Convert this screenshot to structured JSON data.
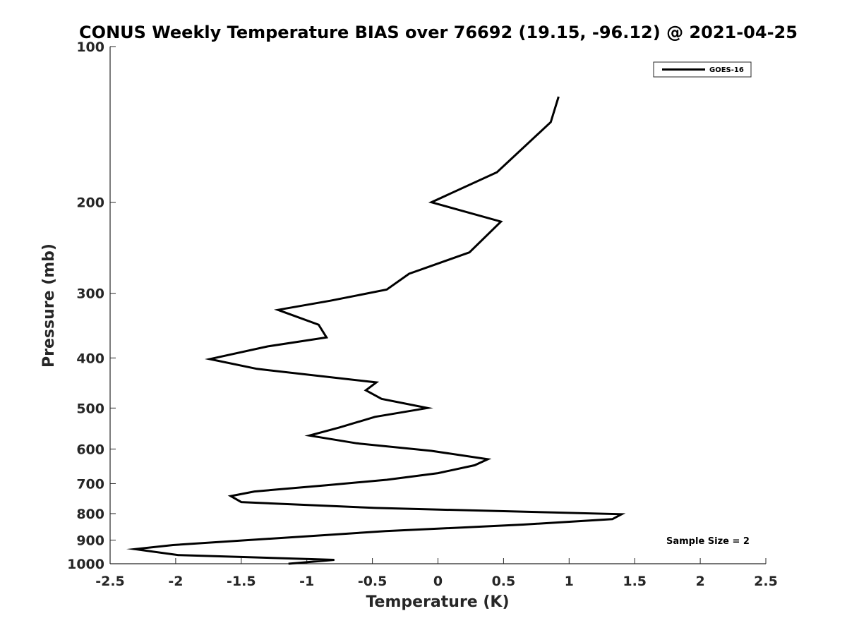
{
  "chart_data": {
    "type": "line",
    "title": "CONUS Weekly Temperature BIAS over 76692 (19.15, -96.12) @ 2021-04-25",
    "xlabel": "Temperature (K)",
    "ylabel": "Pressure (mb)",
    "xlim": [
      -2.5,
      2.5
    ],
    "ylim": [
      1000,
      100
    ],
    "y_scale": "log",
    "y_reversed": true,
    "x_ticks": [
      -2.5,
      -2,
      -1.5,
      -1,
      -0.5,
      0,
      0.5,
      1,
      1.5,
      2,
      2.5
    ],
    "x_tick_labels": [
      "-2.5",
      "-2",
      "-1.5",
      "-1",
      "-0.5",
      "0",
      "0.5",
      "1",
      "1.5",
      "2",
      "2.5"
    ],
    "y_ticks": [
      100,
      200,
      300,
      400,
      500,
      600,
      700,
      800,
      900,
      1000
    ],
    "y_tick_labels": [
      "100",
      "200",
      "300",
      "400",
      "500",
      "600",
      "700",
      "800",
      "900",
      "1000"
    ],
    "grid": false,
    "legend_position": "top-right",
    "series": [
      {
        "name": "GOES-16",
        "color": "#000000",
        "points": [
          {
            "x": 0.92,
            "y": 125
          },
          {
            "x": 0.86,
            "y": 140
          },
          {
            "x": 0.45,
            "y": 175
          },
          {
            "x": -0.05,
            "y": 200
          },
          {
            "x": 0.48,
            "y": 218
          },
          {
            "x": 0.24,
            "y": 250
          },
          {
            "x": -0.22,
            "y": 275
          },
          {
            "x": -0.39,
            "y": 295
          },
          {
            "x": -0.82,
            "y": 310
          },
          {
            "x": -1.22,
            "y": 323
          },
          {
            "x": -0.91,
            "y": 345
          },
          {
            "x": -0.85,
            "y": 365
          },
          {
            "x": -1.3,
            "y": 380
          },
          {
            "x": -1.74,
            "y": 402
          },
          {
            "x": -1.38,
            "y": 420
          },
          {
            "x": -0.47,
            "y": 446
          },
          {
            "x": -0.55,
            "y": 462
          },
          {
            "x": -0.43,
            "y": 480
          },
          {
            "x": -0.08,
            "y": 500
          },
          {
            "x": -0.48,
            "y": 520
          },
          {
            "x": -0.75,
            "y": 545
          },
          {
            "x": -0.98,
            "y": 565
          },
          {
            "x": -0.62,
            "y": 585
          },
          {
            "x": -0.05,
            "y": 605
          },
          {
            "x": 0.38,
            "y": 628
          },
          {
            "x": 0.28,
            "y": 645
          },
          {
            "x": 0.0,
            "y": 668
          },
          {
            "x": -0.39,
            "y": 688
          },
          {
            "x": -0.85,
            "y": 705
          },
          {
            "x": -1.4,
            "y": 725
          },
          {
            "x": -1.58,
            "y": 740
          },
          {
            "x": -1.5,
            "y": 760
          },
          {
            "x": -0.48,
            "y": 780
          },
          {
            "x": 1.4,
            "y": 802
          },
          {
            "x": 1.33,
            "y": 820
          },
          {
            "x": 0.65,
            "y": 840
          },
          {
            "x": -0.4,
            "y": 865
          },
          {
            "x": -1.0,
            "y": 885
          },
          {
            "x": -2.02,
            "y": 920
          },
          {
            "x": -2.31,
            "y": 937
          },
          {
            "x": -1.98,
            "y": 962
          },
          {
            "x": -0.79,
            "y": 983
          },
          {
            "x": -1.14,
            "y": 1000
          }
        ]
      }
    ],
    "annotations": [
      {
        "text": "Sample Size = 2",
        "position": "bottom-right"
      }
    ]
  }
}
